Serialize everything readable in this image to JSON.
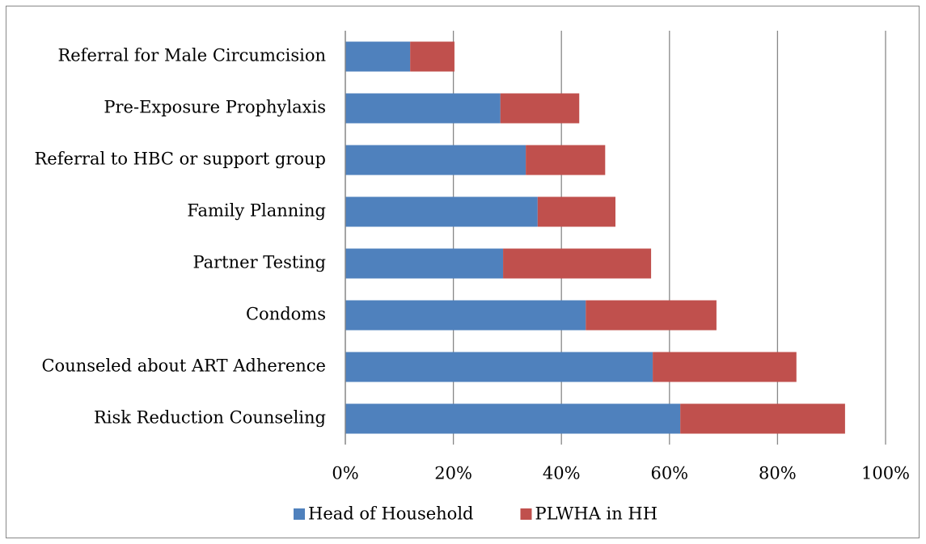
{
  "chart_data": {
    "type": "stacked_barh",
    "categories": [
      "Referral for Male Circumcision",
      "Pre-Exposure Prophylaxis",
      "Referral to HBC or support group",
      "Family Planning",
      "Partner Testing",
      "Condoms",
      "Counseled about ART Adherence",
      "Risk Reduction Counseling"
    ],
    "series": [
      {
        "name": "Head of Household",
        "color": "#4f81bd",
        "values": [
          12.0,
          28.7,
          33.4,
          35.6,
          29.2,
          44.5,
          56.9,
          62.0
        ]
      },
      {
        "name": "PLWHA in HH",
        "color": "#c0504d",
        "values": [
          8.2,
          14.6,
          14.7,
          14.4,
          27.4,
          24.2,
          26.6,
          30.5
        ]
      }
    ],
    "xlim": [
      0,
      100
    ],
    "xticks": [
      {
        "value": 0,
        "label": "0%"
      },
      {
        "value": 20,
        "label": "20%"
      },
      {
        "value": 40,
        "label": "40%"
      },
      {
        "value": 60,
        "label": "60%"
      },
      {
        "value": 80,
        "label": "80%"
      },
      {
        "value": 100,
        "label": "100%"
      }
    ],
    "grid": true,
    "legend": "bottom"
  }
}
